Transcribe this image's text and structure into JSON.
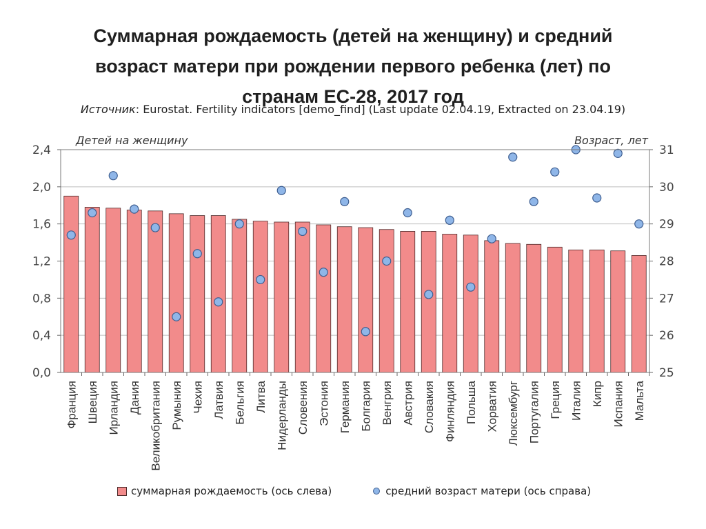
{
  "title_line1": "Суммарная рождаемость (детей на женщину) и средний",
  "title_line2": "возраст матери при рождении первого ребенка (лет) по",
  "title_line3": "странам ЕС-28, 2017 год",
  "source_label": "Источник",
  "source_text": ": Eurostat. Fertility indicators [demo_find] (Last update 02.04.19, Extracted on 23.04.19)",
  "colors": {
    "bar": "#f28b8b",
    "bar_stroke": "#4d2a2a",
    "dot": "#8fb6e8",
    "dot_stroke": "#3e5e90"
  },
  "chart_data": {
    "type": "bar",
    "ylabel": "Детей на женщину",
    "y2label": "Возраст, лет",
    "ylim": [
      0,
      2.4
    ],
    "y2lim": [
      25,
      31
    ],
    "yticks": [
      "0,0",
      "0,4",
      "0,8",
      "1,2",
      "1,6",
      "2,0",
      "2,4"
    ],
    "y2ticks": [
      "25",
      "26",
      "27",
      "28",
      "29",
      "30",
      "31"
    ],
    "grid": true,
    "categories": [
      "Франция",
      "Швеция",
      "Ирландия",
      "Дания",
      "Великобритания",
      "Румыния",
      "Чехия",
      "Латвия",
      "Бельгия",
      "Литва",
      "Нидерланды",
      "Словения",
      "Эстония",
      "Германия",
      "Болгария",
      "Венгрия",
      "Австрия",
      "Словакия",
      "Финляндия",
      "Польша",
      "Хорватия",
      "Люксембург",
      "Португалия",
      "Греция",
      "Италия",
      "Кипр",
      "Испания",
      "Мальта"
    ],
    "series": [
      {
        "name": "суммарная рождаемость (ось слева)",
        "axis": "left",
        "type": "bar",
        "values": [
          1.9,
          1.78,
          1.77,
          1.75,
          1.74,
          1.71,
          1.69,
          1.69,
          1.65,
          1.63,
          1.62,
          1.62,
          1.59,
          1.57,
          1.56,
          1.54,
          1.52,
          1.52,
          1.49,
          1.48,
          1.42,
          1.39,
          1.38,
          1.35,
          1.32,
          1.32,
          1.31,
          1.26
        ]
      },
      {
        "name": "средний возраст матери (ось справа)",
        "axis": "right",
        "type": "scatter",
        "values": [
          28.7,
          29.3,
          30.3,
          29.4,
          28.9,
          26.5,
          28.2,
          26.9,
          29.0,
          27.5,
          29.9,
          28.8,
          27.7,
          29.6,
          26.1,
          28.0,
          29.3,
          27.1,
          29.1,
          27.3,
          28.6,
          30.8,
          29.6,
          30.4,
          31.0,
          29.7,
          30.9,
          29.0
        ]
      }
    ]
  },
  "legend": {
    "bar_label": "суммарная рождаемость (ось слева)",
    "dot_label": "средний возраст матери (ось справа)"
  }
}
